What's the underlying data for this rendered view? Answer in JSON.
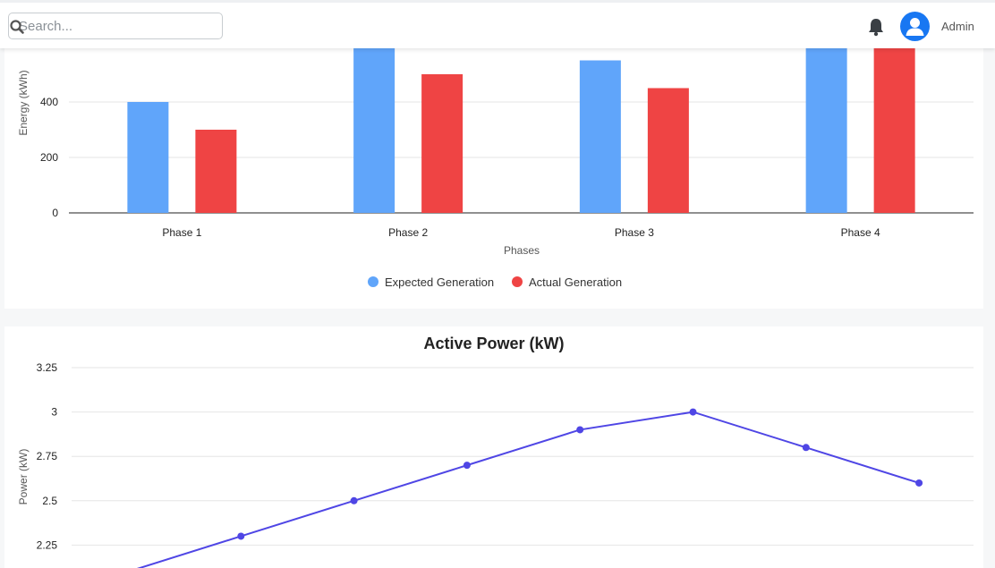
{
  "search": {
    "placeholder": "Search..."
  },
  "user": {
    "name": "Admin"
  },
  "icons": {
    "search": "search-icon",
    "bell": "bell-icon",
    "avatar": "user-avatar-icon"
  },
  "colors": {
    "expected": "#60a5fa",
    "actual": "#ef4444",
    "line": "#4f46e5"
  },
  "chart_data": [
    {
      "type": "bar",
      "title": "",
      "xlabel": "Phases",
      "ylabel": "Energy (kWh)",
      "categories": [
        "Phase 1",
        "Phase 2",
        "Phase 3",
        "Phase 4"
      ],
      "series": [
        {
          "name": "Expected Generation",
          "values": [
            400,
            600,
            550,
            600
          ]
        },
        {
          "name": "Actual Generation",
          "values": [
            300,
            500,
            450,
            600
          ]
        }
      ],
      "yticks": [
        "0",
        "200",
        "400"
      ],
      "ylim": [
        0,
        600
      ],
      "legend_position": "bottom",
      "grid": true
    },
    {
      "type": "line",
      "title": "Active Power (kW)",
      "xlabel": "",
      "ylabel": "Power (kW)",
      "values": [
        2.1,
        2.3,
        2.5,
        2.7,
        2.9,
        3.0,
        2.8,
        2.6
      ],
      "yticks": [
        "2.25",
        "2.5",
        "2.75",
        "3",
        "3.25"
      ],
      "ylim": [
        2.0,
        3.25
      ],
      "grid": true
    }
  ]
}
